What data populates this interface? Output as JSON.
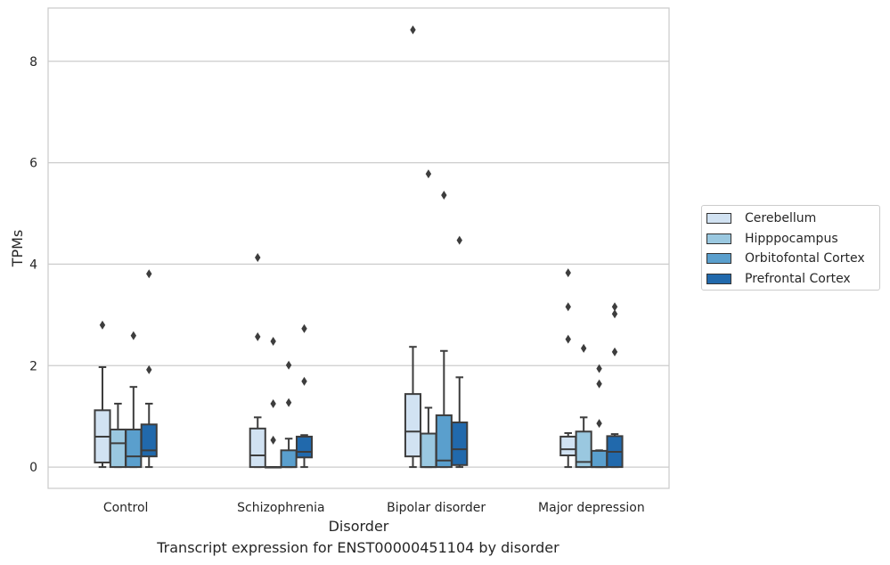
{
  "chart_data": {
    "type": "box",
    "title": "",
    "caption": "Transcript expression for ENST00000451104 by disorder",
    "xlabel": "Disorder",
    "ylabel": "TPMs",
    "ylim": [
      -0.42,
      9.05
    ],
    "yticks": [
      0,
      2,
      4,
      6,
      8
    ],
    "grid": "horizontal",
    "legend_position": "right",
    "categories": [
      "Control",
      "Schizophrenia",
      "Bipolar disorder",
      "Major depression"
    ],
    "series": [
      {
        "name": "Cerebellum",
        "color": "#d1e2f2",
        "boxes": [
          {
            "whislo": 0.0,
            "q1": 0.09,
            "med": 0.6,
            "q3": 1.12,
            "whishi": 1.97,
            "fliers": [
              2.8
            ]
          },
          {
            "whislo": 0.0,
            "q1": 0.0,
            "med": 0.23,
            "q3": 0.76,
            "whishi": 0.98,
            "fliers": [
              4.13,
              2.57
            ]
          },
          {
            "whislo": 0.0,
            "q1": 0.21,
            "med": 0.7,
            "q3": 1.44,
            "whishi": 2.37,
            "fliers": [
              8.62
            ]
          },
          {
            "whislo": 0.0,
            "q1": 0.23,
            "med": 0.35,
            "q3": 0.6,
            "whishi": 0.67,
            "fliers": [
              3.83,
              3.16,
              2.52
            ]
          }
        ]
      },
      {
        "name": "Hipppocampus",
        "color": "#9ac8e0",
        "boxes": [
          {
            "whislo": 0.0,
            "q1": 0.0,
            "med": 0.47,
            "q3": 0.74,
            "whishi": 1.25,
            "fliers": []
          },
          {
            "whislo": 0.0,
            "q1": 0.0,
            "med": 0.0,
            "q3": 0.0,
            "whishi": 0.0,
            "fliers": [
              2.48,
              1.25,
              0.53
            ]
          },
          {
            "whislo": 0.0,
            "q1": 0.0,
            "med": 0.0,
            "q3": 0.66,
            "whishi": 1.17,
            "fliers": [
              5.78
            ]
          },
          {
            "whislo": 0.0,
            "q1": 0.0,
            "med": 0.1,
            "q3": 0.7,
            "whishi": 0.98,
            "fliers": [
              2.34
            ]
          }
        ]
      },
      {
        "name": "Orbitofontal Cortex",
        "color": "#5a9fcd",
        "boxes": [
          {
            "whislo": 0.0,
            "q1": 0.0,
            "med": 0.21,
            "q3": 0.74,
            "whishi": 1.58,
            "fliers": [
              2.59
            ]
          },
          {
            "whislo": 0.0,
            "q1": 0.0,
            "med": 0.0,
            "q3": 0.33,
            "whishi": 0.56,
            "fliers": [
              2.01,
              1.27
            ]
          },
          {
            "whislo": 0.0,
            "q1": 0.0,
            "med": 0.13,
            "q3": 1.02,
            "whishi": 2.29,
            "fliers": [
              5.36
            ]
          },
          {
            "whislo": 0.0,
            "q1": 0.0,
            "med": 0.0,
            "q3": 0.32,
            "whishi": 0.33,
            "fliers": [
              1.94,
              1.64,
              0.86
            ]
          }
        ]
      },
      {
        "name": "Prefrontal Cortex",
        "color": "#2169ac",
        "boxes": [
          {
            "whislo": 0.0,
            "q1": 0.21,
            "med": 0.33,
            "q3": 0.84,
            "whishi": 1.25,
            "fliers": [
              3.81,
              1.92
            ]
          },
          {
            "whislo": 0.0,
            "q1": 0.19,
            "med": 0.3,
            "q3": 0.6,
            "whishi": 0.63,
            "fliers": [
              2.73,
              1.69
            ]
          },
          {
            "whislo": 0.0,
            "q1": 0.04,
            "med": 0.35,
            "q3": 0.88,
            "whishi": 1.77,
            "fliers": [
              4.47
            ]
          },
          {
            "whislo": 0.0,
            "q1": 0.0,
            "med": 0.3,
            "q3": 0.61,
            "whishi": 0.65,
            "fliers": [
              3.16,
              3.02,
              2.27
            ]
          }
        ]
      }
    ]
  }
}
